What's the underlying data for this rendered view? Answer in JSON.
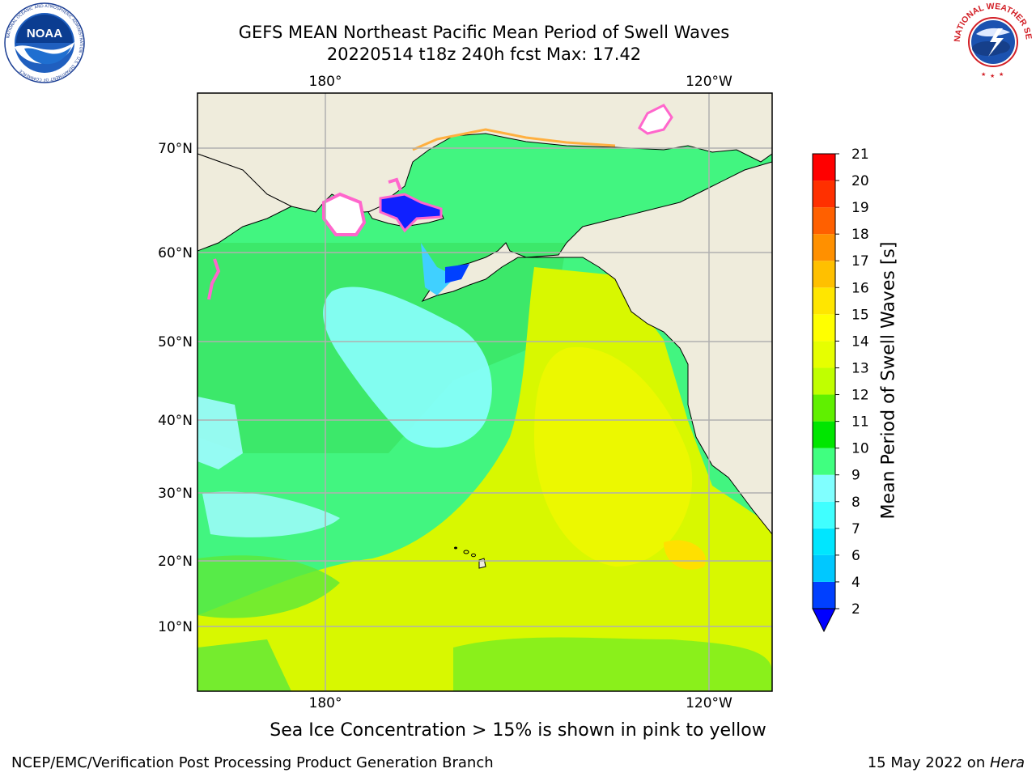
{
  "title": {
    "line1": "GEFS MEAN Northeast Pacific Mean Period of Swell Waves",
    "line2": "20220514 t18z 240h fcst   Max: 17.42"
  },
  "logos": {
    "noaa": {
      "text": "NOAA",
      "icon": "noaa-logo-icon",
      "ring_text": "NATIONAL OCEANIC AND ATMOSPHERIC ADMINISTRATION · U.S. DEPARTMENT OF COMMERCE"
    },
    "nws": {
      "icon": "nws-logo-icon",
      "ring_text": "NATIONAL WEATHER SERVICE"
    }
  },
  "map": {
    "lon_labels": [
      "180°",
      "120°W"
    ],
    "lat_labels": [
      "70°N",
      "60°N",
      "50°N",
      "40°N",
      "30°N",
      "20°N",
      "10°N"
    ],
    "land_color": "#efecdc",
    "grid_color": "#b0b0b0"
  },
  "colorbar": {
    "title": "Mean Period of Swell Waves [s]",
    "ticks": [
      "2",
      "4",
      "6",
      "7",
      "8",
      "9",
      "10",
      "11",
      "12",
      "13",
      "14",
      "15",
      "16",
      "17",
      "18",
      "19",
      "20",
      "21"
    ],
    "colors": [
      "#0040ff",
      "#00c8ff",
      "#00e6ff",
      "#40ffff",
      "#80ffff",
      "#40ff80",
      "#00e600",
      "#60f000",
      "#c0ff00",
      "#e6ff00",
      "#ffff00",
      "#ffe600",
      "#ffc000",
      "#ff9000",
      "#ff6000",
      "#ff3000",
      "#ff0000"
    ],
    "under_color": "#0000ff"
  },
  "note": "Sea Ice Concentration > 15% is shown in pink to yellow",
  "footer": {
    "left": "NCEP/EMC/Verification Post Processing Product Generation Branch",
    "right_prefix": "15 May 2022 on ",
    "right_host": "Hera"
  }
}
